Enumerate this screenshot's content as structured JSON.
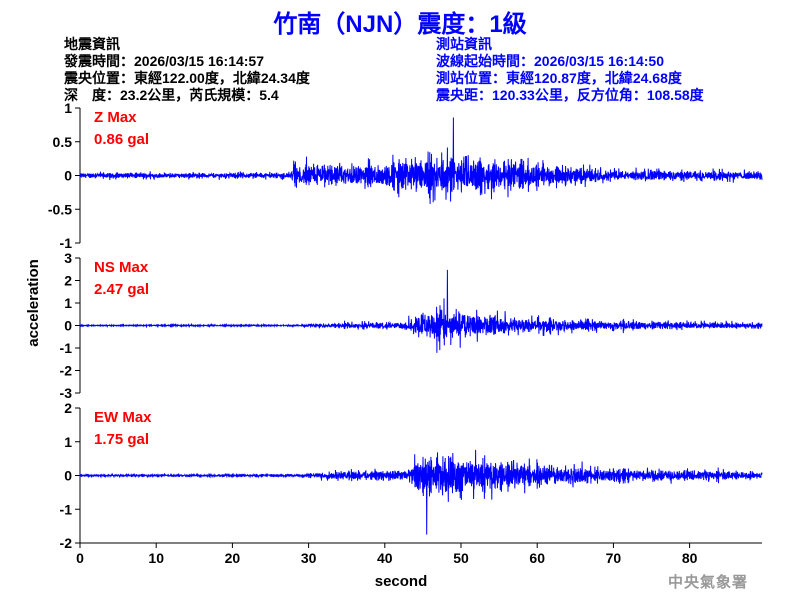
{
  "title": "竹南（NJN）震度：1級",
  "quake_info": {
    "heading": "地震資訊",
    "lines": [
      "發震時間：2026/03/15 16:14:57",
      "震央位置：東經122.00度，北緯24.34度",
      "深　度：23.2公里，芮氏規模：5.4"
    ]
  },
  "station_info": {
    "heading": "測站資訊",
    "lines": [
      "波線起始時間：2026/03/15 16:14:50",
      "測站位置：東經120.87度，北緯24.68度",
      "震央距：120.33公里，反方位角：108.58度"
    ]
  },
  "watermark": "中央氣象署",
  "colors": {
    "trace": "#0000ff",
    "label": "#ff0000",
    "title": "#0000ff"
  },
  "chart_data": {
    "type": "line",
    "xlabel": "second",
    "ylabel": "acceleration",
    "xlim": [
      0,
      89.5
    ],
    "xticks": [
      "0",
      "10",
      "20",
      "30",
      "40",
      "50",
      "60",
      "70",
      "80"
    ],
    "grid": false,
    "panels": [
      {
        "label": "Z Max",
        "value": "0.86 gal",
        "ylim": [
          -1,
          1
        ],
        "yticks": [
          "1",
          "0.5",
          "0",
          "-0.5",
          "-1"
        ],
        "peak": 0.86,
        "peak_time": 49,
        "envelope": [
          [
            0,
            0.07
          ],
          [
            27.5,
            0.07
          ],
          [
            28,
            0.3
          ],
          [
            38,
            0.3
          ],
          [
            42,
            0.4
          ],
          [
            46,
            0.5
          ],
          [
            52,
            0.45
          ],
          [
            60,
            0.3
          ],
          [
            70,
            0.15
          ],
          [
            89.5,
            0.12
          ]
        ]
      },
      {
        "label": "NS Max",
        "value": "2.47 gal",
        "ylim": [
          -3,
          3
        ],
        "yticks": [
          "3",
          "2",
          "1",
          "0",
          "-1",
          "-2",
          "-3"
        ],
        "peak": 2.47,
        "peak_time": 48.2,
        "envelope": [
          [
            0,
            0.05
          ],
          [
            29,
            0.06
          ],
          [
            32,
            0.2
          ],
          [
            42,
            0.3
          ],
          [
            45,
            1.0
          ],
          [
            48,
            1.4
          ],
          [
            53,
            0.9
          ],
          [
            60,
            0.6
          ],
          [
            70,
            0.35
          ],
          [
            89.5,
            0.2
          ]
        ]
      },
      {
        "label": "EW Max",
        "value": "1.75 gal",
        "ylim": [
          -2,
          2
        ],
        "yticks": [
          "2",
          "1",
          "0",
          "-1",
          "-2"
        ],
        "peak": -1.75,
        "peak_time": 45.5,
        "envelope": [
          [
            0,
            0.06
          ],
          [
            29,
            0.07
          ],
          [
            32,
            0.2
          ],
          [
            43,
            0.3
          ],
          [
            44.5,
            1.0
          ],
          [
            48,
            1.1
          ],
          [
            53,
            0.9
          ],
          [
            58,
            0.7
          ],
          [
            68,
            0.4
          ],
          [
            89.5,
            0.2
          ]
        ]
      }
    ]
  }
}
